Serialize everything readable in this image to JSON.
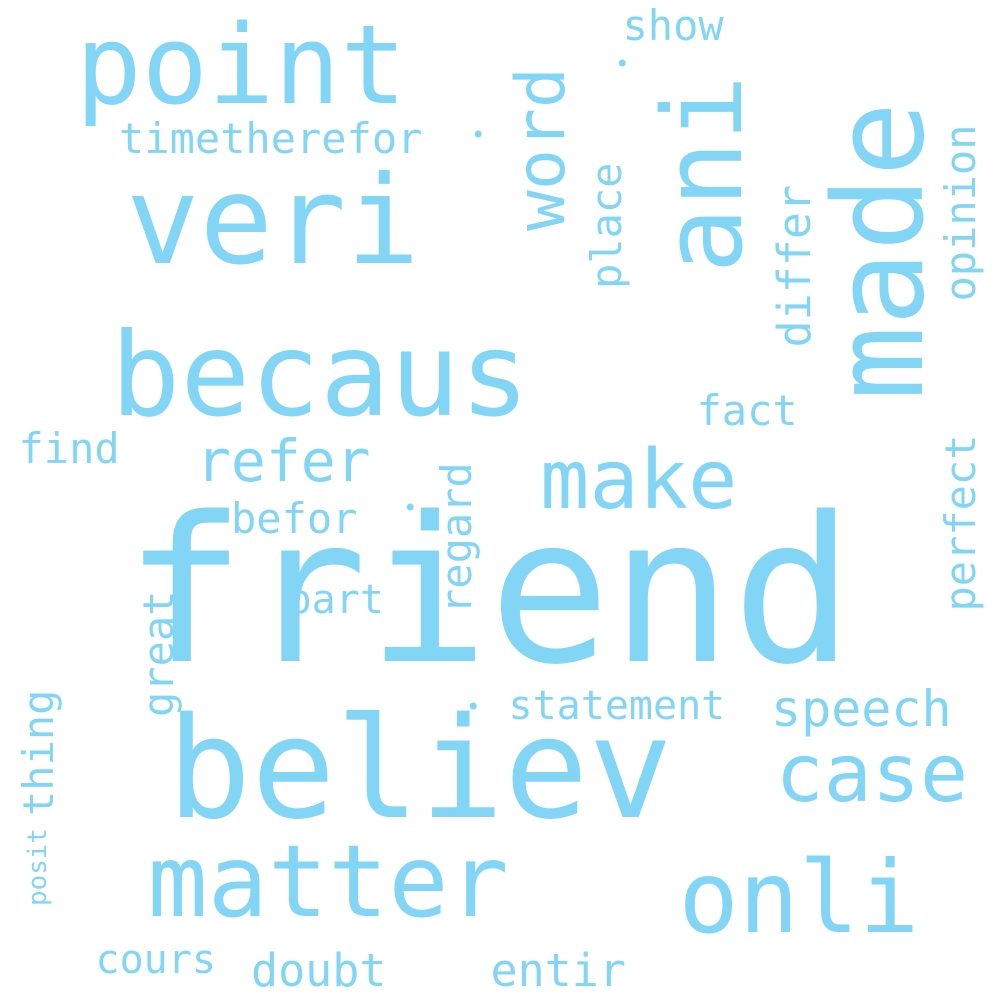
{
  "word_cloud": {
    "color": "#83d5f6",
    "background": "#ffffff",
    "words": [
      {
        "text": "friend",
        "orientation": "horizontal"
      },
      {
        "text": "veri",
        "orientation": "horizontal"
      },
      {
        "text": "believ",
        "orientation": "horizontal"
      },
      {
        "text": "becaus",
        "orientation": "horizontal"
      },
      {
        "text": "made",
        "orientation": "vertical"
      },
      {
        "text": "ani",
        "orientation": "vertical"
      },
      {
        "text": "point",
        "orientation": "horizontal"
      },
      {
        "text": "matter",
        "orientation": "horizontal"
      },
      {
        "text": "onli",
        "orientation": "horizontal"
      },
      {
        "text": "make",
        "orientation": "horizontal"
      },
      {
        "text": "case",
        "orientation": "horizontal"
      },
      {
        "text": "word",
        "orientation": "vertical"
      },
      {
        "text": "refer",
        "orientation": "horizontal"
      },
      {
        "text": "speech",
        "orientation": "horizontal"
      },
      {
        "text": "statement",
        "orientation": "horizontal"
      },
      {
        "text": "timetherefor",
        "orientation": "horizontal"
      },
      {
        "text": "fact",
        "orientation": "horizontal"
      },
      {
        "text": "find",
        "orientation": "horizontal"
      },
      {
        "text": "befor",
        "orientation": "horizontal"
      },
      {
        "text": "part",
        "orientation": "horizontal"
      },
      {
        "text": "show",
        "orientation": "horizontal"
      },
      {
        "text": "cours",
        "orientation": "horizontal"
      },
      {
        "text": "doubt",
        "orientation": "horizontal"
      },
      {
        "text": "entir",
        "orientation": "horizontal"
      },
      {
        "text": "place",
        "orientation": "vertical"
      },
      {
        "text": "differ",
        "orientation": "vertical"
      },
      {
        "text": "opinion",
        "orientation": "vertical"
      },
      {
        "text": "perfect",
        "orientation": "vertical"
      },
      {
        "text": "regard",
        "orientation": "vertical"
      },
      {
        "text": "great",
        "orientation": "vertical"
      },
      {
        "text": "thing",
        "orientation": "vertical"
      },
      {
        "text": "posit",
        "orientation": "vertical"
      },
      {
        "text": "•",
        "orientation": "horizontal"
      },
      {
        "text": "•",
        "orientation": "horizontal"
      },
      {
        "text": "•",
        "orientation": "horizontal"
      },
      {
        "text": "•",
        "orientation": "horizontal"
      }
    ]
  }
}
